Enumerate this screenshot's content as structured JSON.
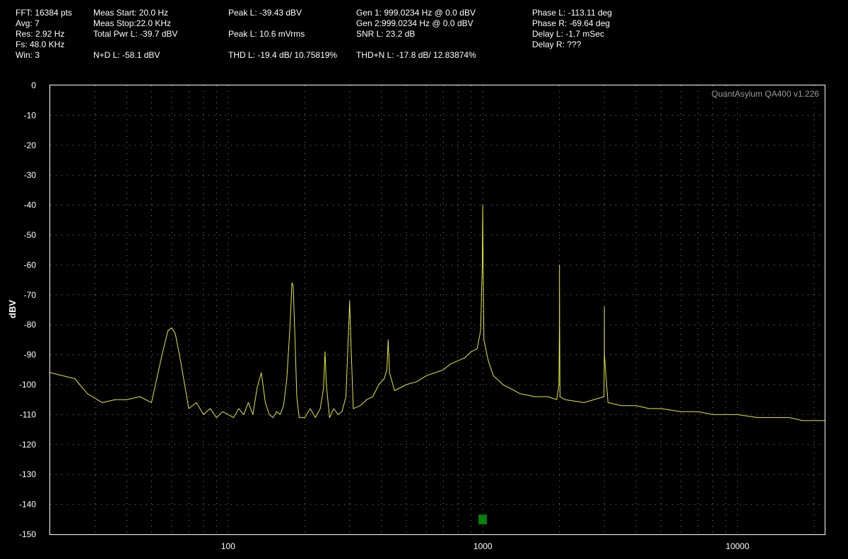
{
  "readouts": {
    "col1": [
      "FFT: 16384 pts",
      "Avg: 7",
      "Res: 2.92 Hz",
      "Fs: 48.0 KHz",
      "Win: 3"
    ],
    "col2": [
      "Meas Start: 20.0 Hz",
      "Meas Stop:22.0 KHz",
      "Total Pwr L: -39.7 dBV",
      "N+D L: -58.1 dBV"
    ],
    "col3": [
      "Peak L: -39.43 dBV",
      "Peak L: 10.6 mVrms",
      "THD L: -19.4 dB/ 10.75819%"
    ],
    "col4": [
      "Gen 1: 999.0234 Hz @ 0.0  dBV",
      "Gen 2:999.0234 Hz @ 0.0  dBV",
      "SNR L: 23.2 dB",
      "THD+N L: -17.8 dB/ 12.83874%"
    ],
    "col5": [
      "Phase L: -113.11 deg",
      "Phase R: -69.64 deg",
      "Delay L: -1.7 mSec",
      "Delay R: ???"
    ]
  },
  "colors": {
    "trace": "#e8e830",
    "grid": "#8a8a8a",
    "frame": "#ffffff",
    "marker": "#0a7a0a"
  },
  "chart_data": {
    "type": "line",
    "watermark": "QuantAsylum QA400 v1.226",
    "ylabel": "dBV",
    "xscale": "log",
    "xlim": [
      20,
      22000
    ],
    "ylim": [
      -150,
      0
    ],
    "y_ticks": [
      0,
      -10,
      -20,
      -30,
      -40,
      -50,
      -60,
      -70,
      -80,
      -90,
      -100,
      -110,
      -120,
      -130,
      -140,
      -150
    ],
    "x_ticks": [
      100,
      1000,
      10000
    ],
    "grid": true,
    "marker": {
      "label": "F",
      "x": 999
    },
    "series": [
      {
        "x": [
          20,
          25,
          28,
          32,
          36,
          40,
          45,
          50,
          55,
          58,
          60,
          62,
          65,
          70,
          75,
          80,
          85,
          90,
          95,
          100,
          105,
          110,
          115,
          120,
          125,
          130,
          135,
          140,
          145,
          150,
          155,
          160,
          165,
          170,
          175,
          178,
          180,
          183,
          186,
          190,
          200,
          210,
          220,
          230,
          237,
          240,
          243,
          250,
          260,
          270,
          280,
          290,
          296,
          300,
          304,
          310,
          330,
          350,
          370,
          390,
          410,
          420,
          425,
          430,
          450,
          500,
          550,
          600,
          650,
          700,
          750,
          800,
          850,
          900,
          950,
          980,
          995,
          999,
          1003,
          1010,
          1050,
          1100,
          1200,
          1400,
          1600,
          1800,
          1950,
          1990,
          1998,
          2000,
          2002,
          2010,
          2100,
          2500,
          2990,
          2998,
          3000,
          3002,
          3100,
          3500,
          4000,
          4500,
          5000,
          6000,
          7000,
          8000,
          9000,
          10000,
          12000,
          14000,
          16000,
          18000,
          20000,
          22000
        ],
        "y": [
          -96,
          -98,
          -103,
          -106,
          -105,
          -105,
          -104,
          -106,
          -90,
          -82,
          -81,
          -83,
          -92,
          -108,
          -106,
          -110,
          -108,
          -111,
          -109,
          -110,
          -111,
          -108,
          -110,
          -106,
          -110,
          -101,
          -96,
          -106,
          -110,
          -111,
          -109,
          -110,
          -107,
          -98,
          -80,
          -66,
          -67,
          -85,
          -104,
          -111,
          -111,
          -108,
          -111,
          -108,
          -101,
          -89,
          -100,
          -111,
          -108,
          -110,
          -109,
          -104,
          -85,
          -72,
          -88,
          -108,
          -107,
          -105,
          -104,
          -100,
          -98,
          -95,
          -85,
          -96,
          -102,
          -100,
          -99,
          -97,
          -96,
          -95,
          -93,
          -92,
          -91,
          -89,
          -88,
          -82,
          -60,
          -40,
          -60,
          -85,
          -92,
          -97,
          -100,
          -103,
          -104,
          -104,
          -105,
          -100,
          -80,
          -60,
          -80,
          -104,
          -105,
          -106,
          -104,
          -90,
          -74,
          -90,
          -106,
          -107,
          -107,
          -108,
          -108,
          -109,
          -109,
          -110,
          -110,
          -110,
          -111,
          -111,
          -111,
          -112,
          -112,
          -112
        ]
      }
    ]
  }
}
